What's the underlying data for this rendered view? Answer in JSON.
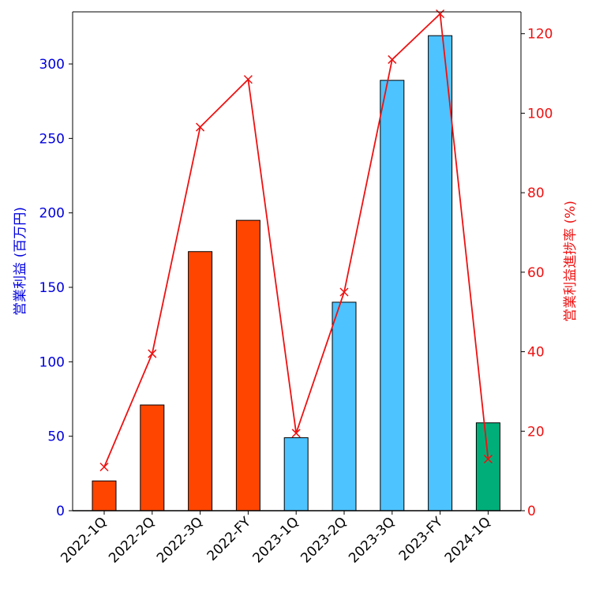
{
  "chart_data": {
    "type": "bar+line",
    "categories": [
      "2022-1Q",
      "2022-2Q",
      "2022-3Q",
      "2022-FY",
      "2023-1Q",
      "2023-2Q",
      "2023-3Q",
      "2023-FY",
      "2024-1Q"
    ],
    "bar_series": {
      "name": "営業利益 (百万円)",
      "values": [
        20,
        71,
        174,
        195,
        49,
        140,
        289,
        319,
        59
      ],
      "colors": [
        "#ff4500",
        "#ff4500",
        "#ff4500",
        "#ff4500",
        "#4dc3ff",
        "#4dc3ff",
        "#4dc3ff",
        "#4dc3ff",
        "#00ae7a"
      ]
    },
    "line_series": {
      "name": "営業利益進捗率 (%)",
      "values": [
        11,
        39.5,
        96.5,
        108.5,
        19.5,
        55,
        113.5,
        125,
        13
      ],
      "color": "#ee1111",
      "marker": "x"
    },
    "ylabel_left": "営業利益 (百万円)",
    "ylabel_right": "営業利益進捗率 (%)",
    "ylim_left": [
      0,
      335
    ],
    "ylim_right": [
      0,
      125.5
    ],
    "yticks_left": [
      0,
      50,
      100,
      150,
      200,
      250,
      300
    ],
    "yticks_right": [
      0,
      20,
      40,
      60,
      80,
      100,
      120
    ],
    "left_axis_color": "#0000dd",
    "right_axis_color": "#ee1111",
    "grid": false
  }
}
